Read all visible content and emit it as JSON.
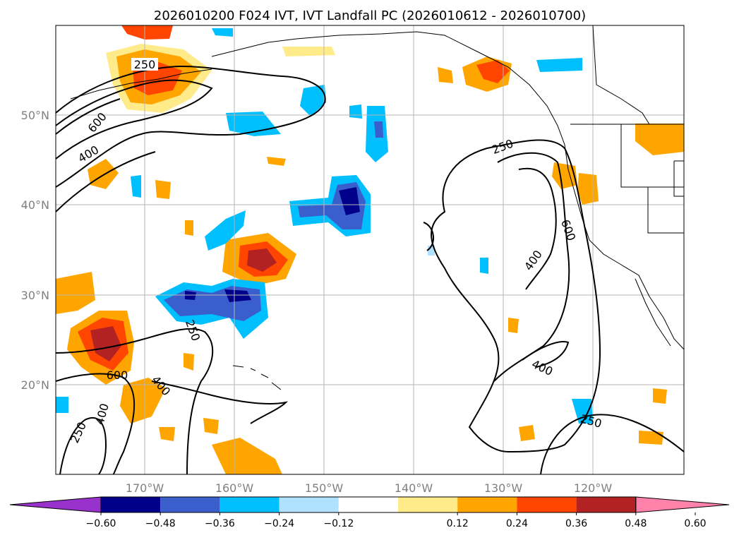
{
  "title": "2026010200 F024 IVT, IVT Landfall PC (2026010612 - 2026010700)",
  "axes": {
    "lon_ticks": [
      "170°W",
      "160°W",
      "150°W",
      "140°W",
      "130°W",
      "120°W"
    ],
    "lat_ticks": [
      "50°N",
      "40°N",
      "30°N",
      "20°N"
    ],
    "lon_range": [
      -180,
      -110
    ],
    "lat_range": [
      10,
      60
    ],
    "grid": true
  },
  "contours": {
    "variable": "IVT",
    "levels": [
      "250",
      "400",
      "600"
    ],
    "labels_shown": [
      "250",
      "600",
      "400",
      "250",
      "250",
      "600",
      "400",
      "400",
      "250",
      "600",
      "400",
      "250",
      "400"
    ]
  },
  "colorbar": {
    "ticks": [
      "−0.60",
      "−0.48",
      "−0.36",
      "−0.24",
      "−0.12",
      "0.12",
      "0.24",
      "0.36",
      "0.48",
      "0.60"
    ],
    "colors": [
      "#9932cc",
      "#00008b",
      "#3a5fcd",
      "#00bfff",
      "#b0e2ff",
      "#ffffff",
      "#ffeb8a",
      "#ffa500",
      "#ff4500",
      "#b22222",
      "#ff82ab"
    ],
    "extend": "both"
  }
}
